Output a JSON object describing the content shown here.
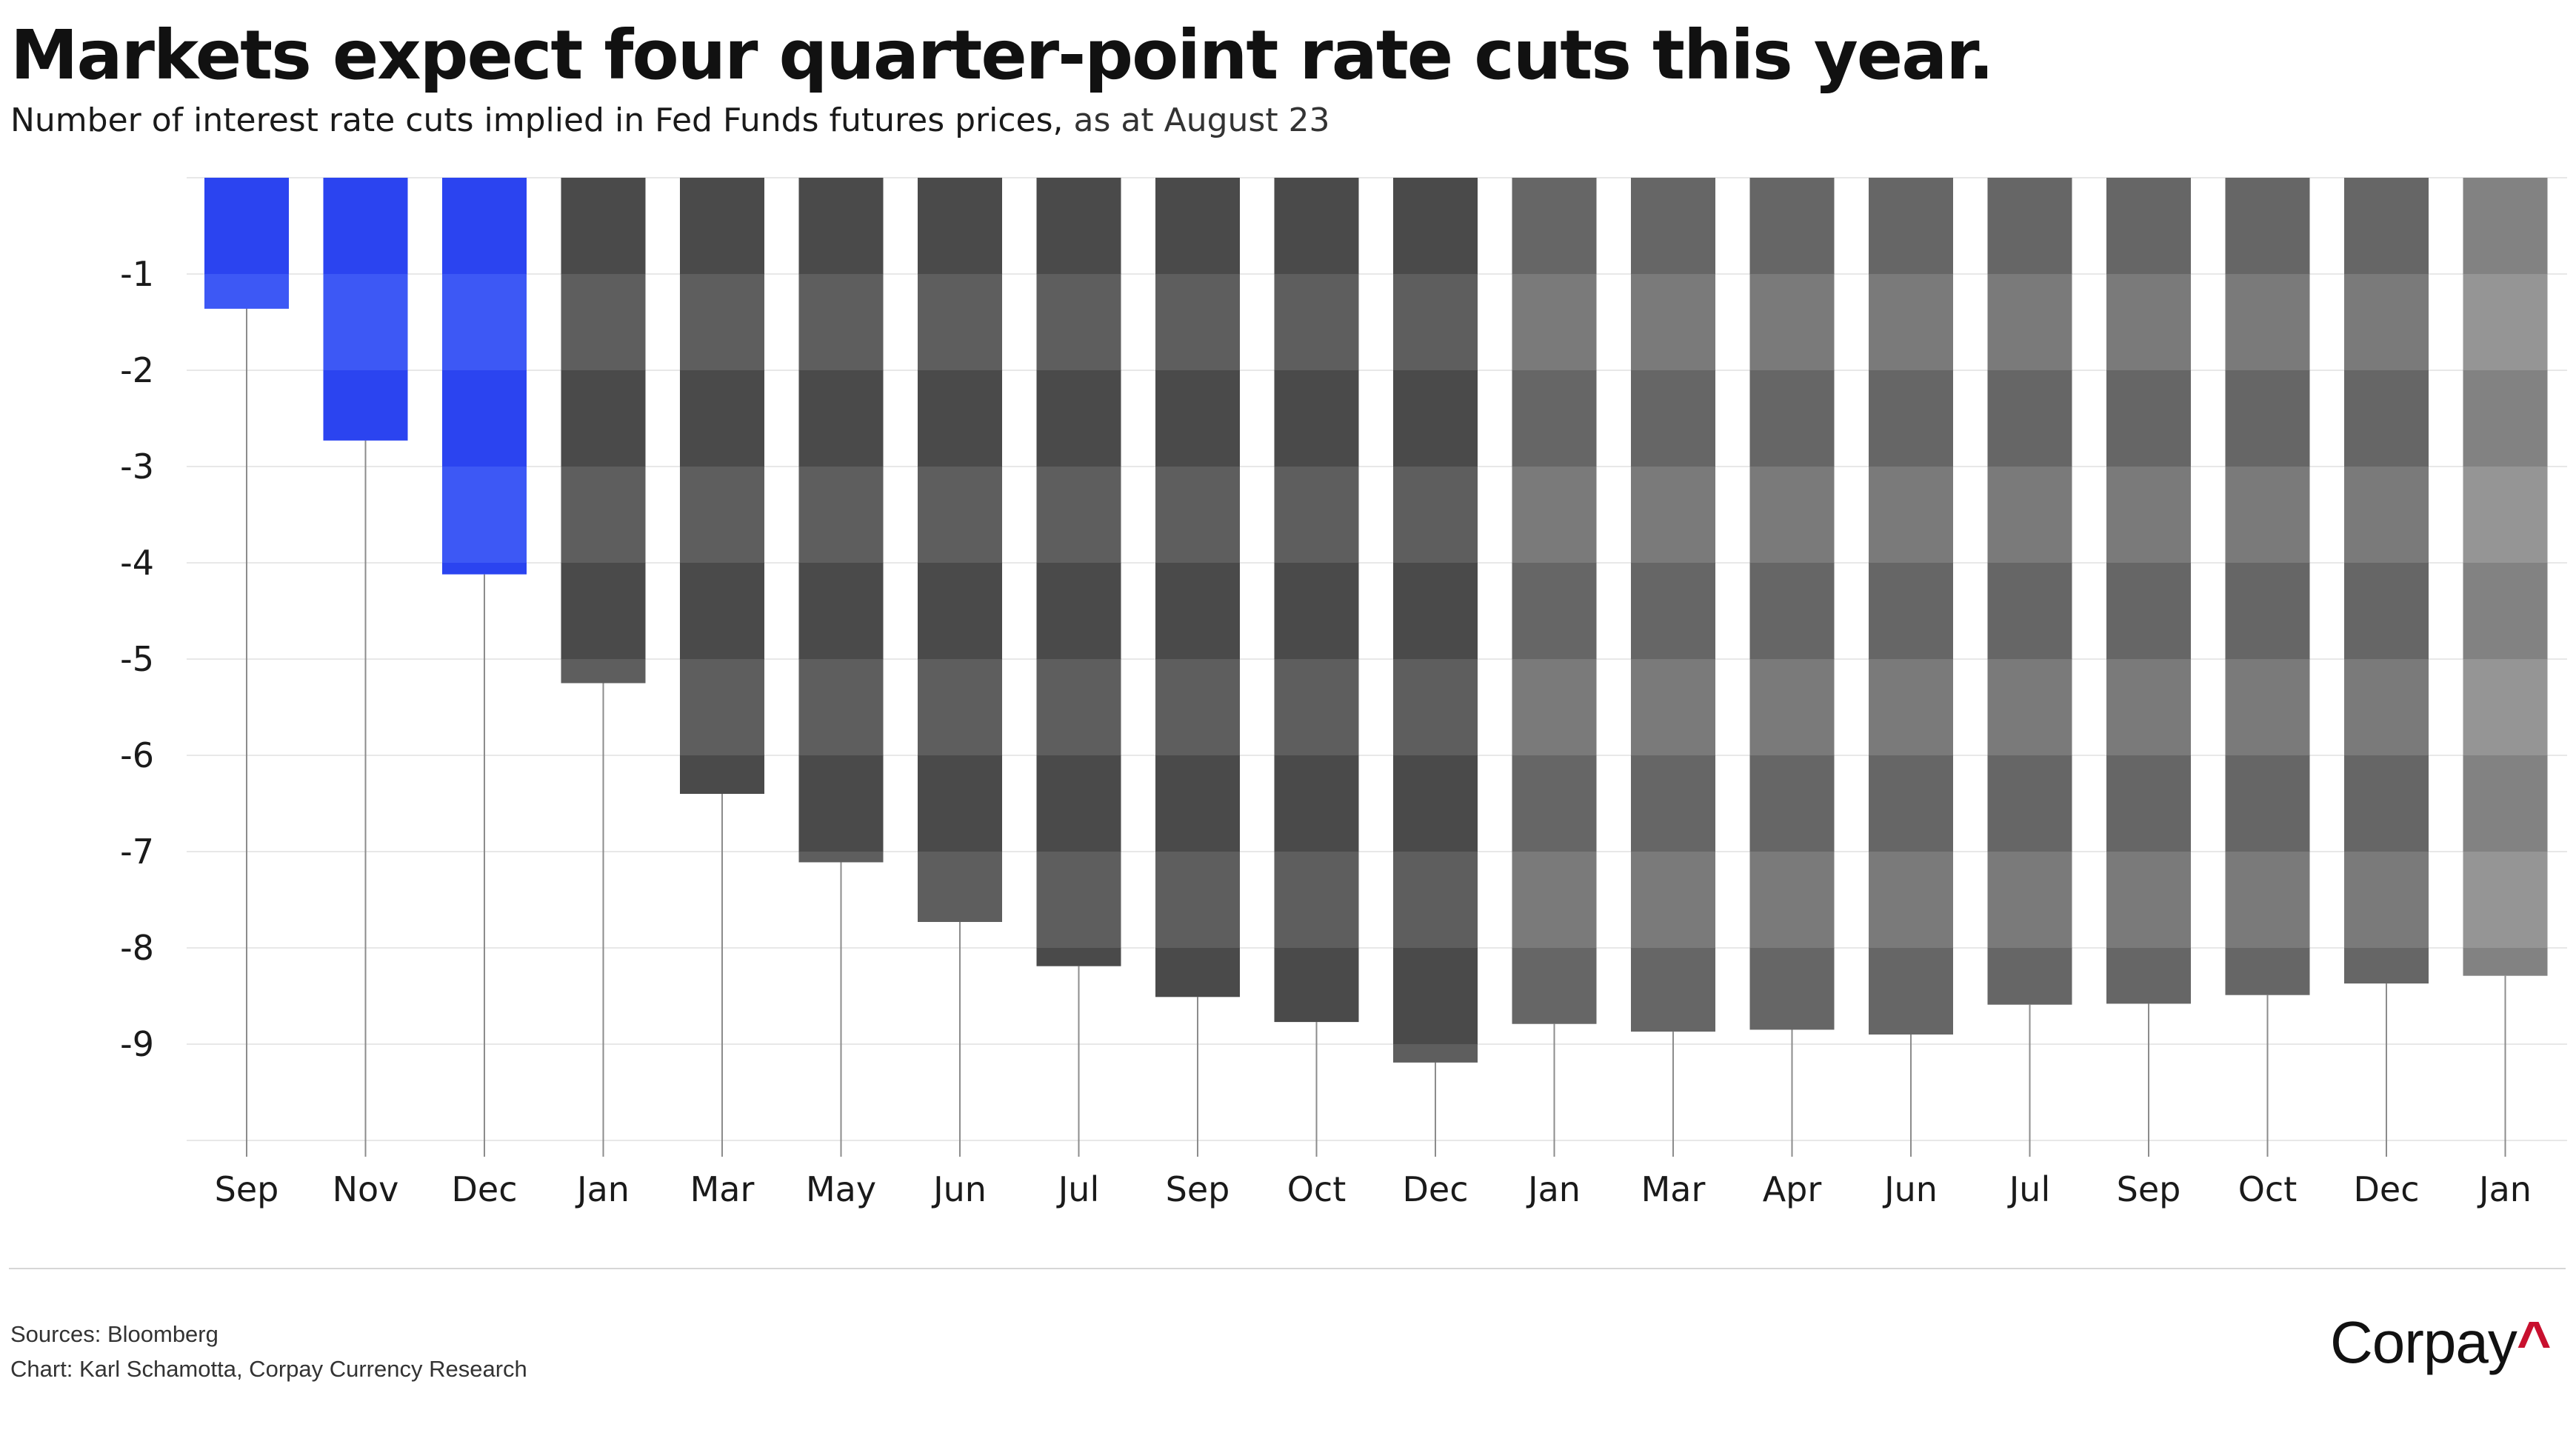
{
  "header": {
    "title": "Markets expect four quarter-point rate cuts this year.",
    "subtitle_main": "Number of interest rate cuts implied in Fed Funds futures prices,",
    "subtitle_date": "as at August 23"
  },
  "footer": {
    "sources": "Sources: Bloomberg",
    "credit": "Chart: Karl Schamotta, Corpay Currency Research"
  },
  "logo": {
    "text": "Corpay",
    "mark": "^",
    "mark_color": "#c8102e"
  },
  "chart_data": {
    "type": "bar",
    "title": "",
    "xlabel": "",
    "ylabel": "",
    "ylim": [
      -10,
      0
    ],
    "yticks": [
      -1,
      -2,
      -3,
      -4,
      -5,
      -6,
      -7,
      -8,
      -9
    ],
    "grid": true,
    "legend": "none",
    "categories": [
      "Sep",
      "Nov",
      "Dec",
      "Jan",
      "Mar",
      "May",
      "Jun",
      "Jul",
      "Sep",
      "Oct",
      "Dec",
      "Jan",
      "Mar",
      "Apr",
      "Jun",
      "Jul",
      "Sep",
      "Oct",
      "Dec",
      "Jan"
    ],
    "values": [
      -1.36,
      -2.73,
      -4.12,
      -5.25,
      -6.4,
      -7.11,
      -7.73,
      -8.19,
      -8.51,
      -8.77,
      -9.19,
      -8.79,
      -8.87,
      -8.85,
      -8.9,
      -8.59,
      -8.58,
      -8.49,
      -8.37,
      -8.29
    ],
    "colors": [
      "#2b44f0",
      "#2b44f0",
      "#2b44f0",
      "#4a4a4a",
      "#4a4a4a",
      "#4a4a4a",
      "#4a4a4a",
      "#4a4a4a",
      "#4a4a4a",
      "#4a4a4a",
      "#4a4a4a",
      "#666666",
      "#666666",
      "#666666",
      "#666666",
      "#666666",
      "#666666",
      "#666666",
      "#666666",
      "#828282"
    ],
    "band_colors": [
      "#3d58f5",
      "#3d58f5",
      "#3d58f5",
      "#5e5e5e",
      "#5e5e5e",
      "#5e5e5e",
      "#5e5e5e",
      "#5e5e5e",
      "#5e5e5e",
      "#5e5e5e",
      "#5e5e5e",
      "#7a7a7a",
      "#7a7a7a",
      "#7a7a7a",
      "#7a7a7a",
      "#7a7a7a",
      "#7a7a7a",
      "#7a7a7a",
      "#7a7a7a",
      "#959595"
    ],
    "gridline_color": "#e8e8e8",
    "stem_color": "#8c8c8c"
  }
}
